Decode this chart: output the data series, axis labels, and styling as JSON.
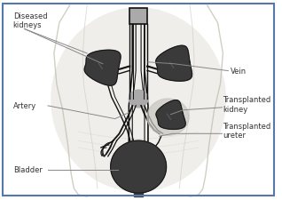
{
  "bg_color": "#f5f5f0",
  "border_color": "#5577aa",
  "kidney_dark": "#3a3a3a",
  "vessel_color": "#111111",
  "ann_color": "#333333",
  "ann_line_color": "#888888",
  "labels": {
    "diseased_kidneys": "Diseased\nkidneys",
    "artery": "Artery",
    "bladder": "Bladder",
    "vein": "Vein",
    "transplanted_kidney": "Transplanted\nkidney",
    "transplanted_ureter": "Transplanted\nureter"
  },
  "font_size": 6.0
}
